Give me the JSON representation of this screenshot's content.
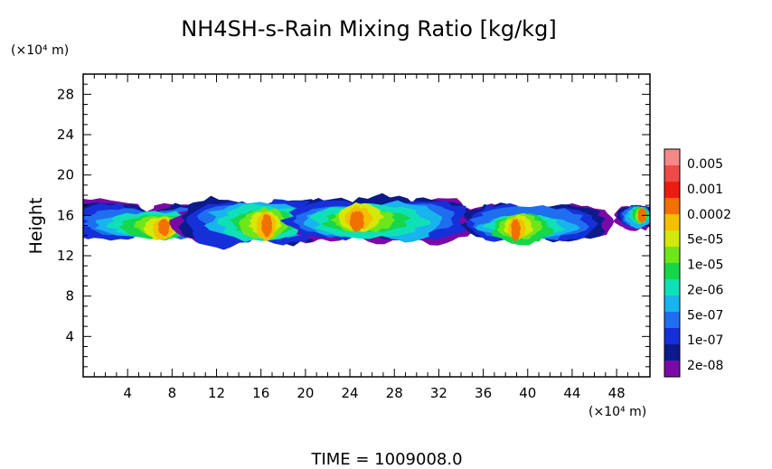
{
  "chart_data": {
    "type": "heatmap",
    "title": "NH4SH-s-Rain Mixing Ratio [kg/kg]",
    "ylabel": "Height",
    "x_unit": "(×10⁴ m)",
    "y_unit": "(×10⁴ m)",
    "xlim": [
      0,
      51
    ],
    "ylim": [
      0,
      30
    ],
    "x_ticks": [
      4,
      8,
      12,
      16,
      20,
      24,
      28,
      32,
      36,
      40,
      44,
      48
    ],
    "y_ticks": [
      4,
      8,
      12,
      16,
      20,
      24,
      28
    ],
    "x_tick_labels": [
      "4",
      "8",
      "12",
      "16",
      "20",
      "24",
      "28",
      "32",
      "36",
      "40",
      "44",
      "48"
    ],
    "y_tick_labels": [
      "4",
      "8",
      "12",
      "16",
      "20",
      "24",
      "28"
    ],
    "colorbar_labels": [
      "0.005",
      "0.001",
      "0.0002",
      "5e-05",
      "1e-05",
      "2e-06",
      "5e-07",
      "1e-07",
      "2e-08"
    ],
    "colorbar_colors": [
      "#7a0aa8",
      "#0c1a8c",
      "#1530d8",
      "#1f6ef0",
      "#18b4ee",
      "#10e0b8",
      "#16d64a",
      "#6ee61a",
      "#d4e80a",
      "#f4c000",
      "#f07000",
      "#ee1c10",
      "#f04a48",
      "#f88888"
    ],
    "clouds": [
      {
        "name": "cloud-a",
        "x0": 0.0,
        "x1": 10.8,
        "y_bottom": 13.8,
        "y_top": 17.2,
        "core_x": 7.4,
        "core_y": 14.7
      },
      {
        "name": "cloud-b",
        "x0": 10.5,
        "x1": 20.5,
        "y_bottom": 13.3,
        "y_top": 17.5,
        "core_x": 16.6,
        "core_y": 15.0
      },
      {
        "name": "cloud-c",
        "x0": 20.4,
        "x1": 33.8,
        "y_bottom": 13.7,
        "y_top": 17.7,
        "core_x": 24.5,
        "core_y": 15.6
      },
      {
        "name": "cloud-d",
        "x0": 36.2,
        "x1": 45.3,
        "y_bottom": 13.4,
        "y_top": 17.0,
        "core_x": 38.8,
        "core_y": 14.6
      },
      {
        "name": "cloud-e",
        "x0": 48.5,
        "x1": 51.0,
        "y_bottom": 14.8,
        "y_top": 17.0,
        "core_x": 50.3,
        "core_y": 16.0
      }
    ]
  },
  "footer": {
    "time_label": "TIME = 1009008.0"
  }
}
